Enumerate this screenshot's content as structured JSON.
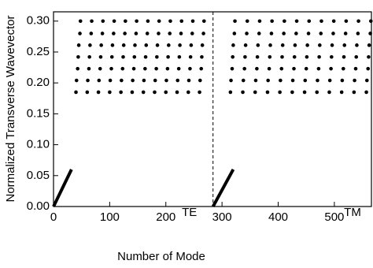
{
  "chart_data": {
    "type": "scatter",
    "xlabel": "Number of Mode",
    "ylabel": "Normalized Transverse Wavevector",
    "xlim": [
      0,
      566
    ],
    "ylim": [
      0,
      0.315
    ],
    "xticks": [
      0,
      100,
      200,
      300,
      400,
      500
    ],
    "yticks": [
      {
        "value": 0,
        "label": "0.00"
      },
      {
        "value": 0.05,
        "label": "0.05"
      },
      {
        "value": 0.1,
        "label": "0.10"
      },
      {
        "value": 0.15,
        "label": "0.15"
      },
      {
        "value": 0.2,
        "label": "0.20"
      },
      {
        "value": 0.25,
        "label": "0.25"
      },
      {
        "value": 0.3,
        "label": "0.30"
      }
    ],
    "vline": 284,
    "annotations": [
      "TE",
      "TM"
    ],
    "series": [
      {
        "style": "line",
        "color": "#000",
        "x": [
          0,
          32
        ],
        "y": [
          0,
          0.06
        ]
      },
      {
        "style": "line",
        "color": "#000",
        "x": [
          284,
          320
        ],
        "y": [
          0,
          0.06
        ]
      },
      {
        "style": "dots",
        "color": "#000",
        "x": [
          40,
          41,
          43,
          44,
          45,
          47,
          48,
          60,
          61,
          63,
          64,
          65,
          67,
          68,
          80,
          81,
          83,
          84,
          85,
          87,
          88,
          100,
          101,
          103,
          104,
          105,
          107,
          108,
          120,
          121,
          123,
          124,
          125,
          127,
          128,
          140,
          141,
          143,
          144,
          145,
          147,
          148,
          160,
          161,
          163,
          164,
          165,
          167,
          168,
          180,
          181,
          183,
          184,
          185,
          187,
          188,
          200,
          201,
          203,
          204,
          205,
          207,
          208,
          220,
          221,
          223,
          224,
          225,
          227,
          228,
          240,
          241,
          243,
          244,
          245,
          247,
          248,
          260,
          261,
          263,
          264,
          265,
          267,
          268
        ],
        "y": [
          0.185,
          0.204,
          0.223,
          0.242,
          0.261,
          0.28,
          0.3,
          0.185,
          0.204,
          0.223,
          0.242,
          0.261,
          0.28,
          0.3,
          0.185,
          0.204,
          0.223,
          0.242,
          0.261,
          0.28,
          0.3,
          0.185,
          0.204,
          0.223,
          0.242,
          0.261,
          0.28,
          0.3,
          0.185,
          0.204,
          0.223,
          0.242,
          0.261,
          0.28,
          0.3,
          0.185,
          0.204,
          0.223,
          0.242,
          0.261,
          0.28,
          0.3,
          0.185,
          0.204,
          0.223,
          0.242,
          0.261,
          0.28,
          0.3,
          0.185,
          0.204,
          0.223,
          0.242,
          0.261,
          0.28,
          0.3,
          0.185,
          0.204,
          0.223,
          0.242,
          0.261,
          0.28,
          0.3,
          0.185,
          0.204,
          0.223,
          0.242,
          0.261,
          0.28,
          0.3,
          0.185,
          0.204,
          0.223,
          0.242,
          0.261,
          0.28,
          0.3,
          0.185,
          0.204,
          0.223,
          0.242,
          0.261,
          0.28,
          0.3
        ]
      },
      {
        "style": "dots",
        "color": "#000",
        "x": [
          315,
          316,
          318,
          319,
          320,
          322,
          323,
          337,
          338,
          340,
          341,
          342,
          344,
          345,
          359,
          360,
          362,
          363,
          364,
          366,
          367,
          381,
          382,
          384,
          385,
          386,
          388,
          389,
          403,
          404,
          406,
          407,
          408,
          410,
          411,
          425,
          426,
          428,
          429,
          430,
          432,
          433,
          447,
          448,
          450,
          451,
          452,
          454,
          455,
          469,
          470,
          472,
          473,
          474,
          476,
          477,
          491,
          492,
          494,
          495,
          496,
          498,
          499,
          513,
          514,
          516,
          517,
          518,
          520,
          521,
          535,
          536,
          538,
          539,
          540,
          542,
          543,
          557,
          558,
          560,
          561,
          562,
          564,
          565
        ],
        "y": [
          0.185,
          0.204,
          0.223,
          0.242,
          0.261,
          0.28,
          0.3,
          0.185,
          0.204,
          0.223,
          0.242,
          0.261,
          0.28,
          0.3,
          0.185,
          0.204,
          0.223,
          0.242,
          0.261,
          0.28,
          0.3,
          0.185,
          0.204,
          0.223,
          0.242,
          0.261,
          0.28,
          0.3,
          0.185,
          0.204,
          0.223,
          0.242,
          0.261,
          0.28,
          0.3,
          0.185,
          0.204,
          0.223,
          0.242,
          0.261,
          0.28,
          0.3,
          0.185,
          0.204,
          0.223,
          0.242,
          0.261,
          0.28,
          0.3,
          0.185,
          0.204,
          0.223,
          0.242,
          0.261,
          0.28,
          0.3,
          0.185,
          0.204,
          0.223,
          0.242,
          0.261,
          0.28,
          0.3,
          0.185,
          0.204,
          0.223,
          0.242,
          0.261,
          0.28,
          0.3,
          0.185,
          0.204,
          0.223,
          0.242,
          0.261,
          0.28,
          0.3,
          0.185,
          0.204,
          0.223,
          0.242,
          0.261,
          0.28,
          0.3
        ]
      }
    ]
  }
}
